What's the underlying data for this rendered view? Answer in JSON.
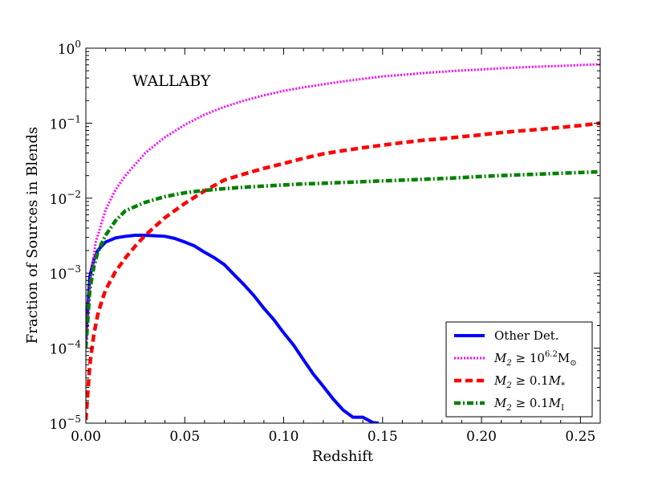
{
  "chart_data": {
    "type": "line",
    "title": "",
    "annotation": "WALLABY",
    "xlabel": "Redshift",
    "ylabel": "Fraction of Sources in Blends",
    "xlim": [
      0.0,
      0.26
    ],
    "ylim": [
      1e-05,
      1.0
    ],
    "yscale": "log",
    "xticks": [
      0.0,
      0.05,
      0.1,
      0.15,
      0.2,
      0.25
    ],
    "xtick_labels": [
      "0.00",
      "0.05",
      "0.10",
      "0.15",
      "0.20",
      "0.25"
    ],
    "yticks": [
      1e-05,
      0.0001,
      0.001,
      0.01,
      0.1,
      1
    ],
    "ytick_labels": [
      {
        "base": "10",
        "exp": "−5"
      },
      {
        "base": "10",
        "exp": "−4"
      },
      {
        "base": "10",
        "exp": "−3"
      },
      {
        "base": "10",
        "exp": "−2"
      },
      {
        "base": "10",
        "exp": "−1"
      },
      {
        "base": "10",
        "exp": "0"
      }
    ],
    "legend_position": "lower-right",
    "series": [
      {
        "name": "Other Det.",
        "color": "#0000ff",
        "style": "solid",
        "legend": {
          "text": "Other Det."
        },
        "x": [
          0.0,
          0.002,
          0.004,
          0.006,
          0.008,
          0.01,
          0.015,
          0.02,
          0.025,
          0.03,
          0.035,
          0.04,
          0.045,
          0.05,
          0.055,
          0.06,
          0.065,
          0.07,
          0.075,
          0.08,
          0.085,
          0.09,
          0.095,
          0.1,
          0.105,
          0.11,
          0.115,
          0.12,
          0.125,
          0.13,
          0.135,
          0.14,
          0.145,
          0.148
        ],
        "y": [
          0.00013,
          0.0009,
          0.0015,
          0.002,
          0.0023,
          0.0026,
          0.00295,
          0.0031,
          0.0032,
          0.0032,
          0.00315,
          0.0031,
          0.0029,
          0.0026,
          0.0023,
          0.0019,
          0.0016,
          0.0013,
          0.00095,
          0.0007,
          0.0005,
          0.00034,
          0.00024,
          0.00016,
          0.00011,
          7e-05,
          4.5e-05,
          3.1e-05,
          2.1e-05,
          1.5e-05,
          1.2e-05,
          1.2e-05,
          1.02e-05,
          1e-05
        ]
      },
      {
        "name": "M2 ≥ 10^6.2 Msun",
        "color": "#ff00ff",
        "style": "dotted",
        "legend": {
          "pre": "M",
          "sub": "2",
          "mid": " ≥ 10",
          "sup": "6.2",
          "post": "M",
          "post_sub": "⊙"
        },
        "x": [
          0.0,
          0.002,
          0.005,
          0.01,
          0.015,
          0.02,
          0.03,
          0.04,
          0.05,
          0.06,
          0.07,
          0.08,
          0.09,
          0.1,
          0.11,
          0.12,
          0.13,
          0.14,
          0.15,
          0.16,
          0.17,
          0.18,
          0.19,
          0.2,
          0.21,
          0.22,
          0.23,
          0.24,
          0.25,
          0.26
        ],
        "y": [
          0.0001,
          0.0007,
          0.0026,
          0.007,
          0.013,
          0.02,
          0.04,
          0.065,
          0.095,
          0.13,
          0.165,
          0.2,
          0.235,
          0.27,
          0.3,
          0.33,
          0.36,
          0.39,
          0.42,
          0.44,
          0.465,
          0.485,
          0.505,
          0.52,
          0.54,
          0.555,
          0.57,
          0.58,
          0.595,
          0.61
        ]
      },
      {
        "name": "M2 ≥ 0.1 M*",
        "color": "#ff0000",
        "style": "dashed",
        "legend": {
          "pre": "M",
          "sub": "2",
          "mid": " ≥ 0.1",
          "post": "M",
          "post_sub": "*"
        },
        "x": [
          0.0,
          0.002,
          0.004,
          0.006,
          0.008,
          0.01,
          0.015,
          0.02,
          0.025,
          0.03,
          0.04,
          0.05,
          0.06,
          0.07,
          0.08,
          0.09,
          0.1,
          0.11,
          0.12,
          0.13,
          0.14,
          0.15,
          0.16,
          0.17,
          0.18,
          0.19,
          0.2,
          0.21,
          0.22,
          0.23,
          0.24,
          0.25,
          0.26
        ],
        "y": [
          1.1e-05,
          6e-05,
          0.00015,
          0.00028,
          0.00042,
          0.0006,
          0.00105,
          0.0016,
          0.0023,
          0.0032,
          0.0055,
          0.0085,
          0.0125,
          0.0175,
          0.021,
          0.025,
          0.029,
          0.034,
          0.039,
          0.043,
          0.047,
          0.051,
          0.055,
          0.059,
          0.062,
          0.066,
          0.07,
          0.075,
          0.079,
          0.083,
          0.088,
          0.093,
          0.1
        ]
      },
      {
        "name": "M2 ≥ 0.1 MI",
        "color": "#008000",
        "style": "dashdot",
        "legend": {
          "pre": "M",
          "sub": "2",
          "mid": " ≥ 0.1",
          "post": "M",
          "post_sub": "I"
        },
        "x": [
          0.0,
          0.002,
          0.004,
          0.006,
          0.008,
          0.01,
          0.015,
          0.02,
          0.03,
          0.04,
          0.05,
          0.06,
          0.07,
          0.08,
          0.09,
          0.1,
          0.11,
          0.12,
          0.13,
          0.14,
          0.15,
          0.16,
          0.17,
          0.18,
          0.19,
          0.2,
          0.21,
          0.22,
          0.23,
          0.24,
          0.25,
          0.26
        ],
        "y": [
          0.0001,
          0.0006,
          0.0012,
          0.0019,
          0.0025,
          0.0032,
          0.005,
          0.0068,
          0.0088,
          0.0105,
          0.0118,
          0.0127,
          0.0134,
          0.014,
          0.0145,
          0.015,
          0.0155,
          0.0158,
          0.0162,
          0.0166,
          0.017,
          0.0174,
          0.0178,
          0.0183,
          0.0188,
          0.0195,
          0.02,
          0.0205,
          0.021,
          0.0215,
          0.022,
          0.0225
        ]
      }
    ]
  }
}
